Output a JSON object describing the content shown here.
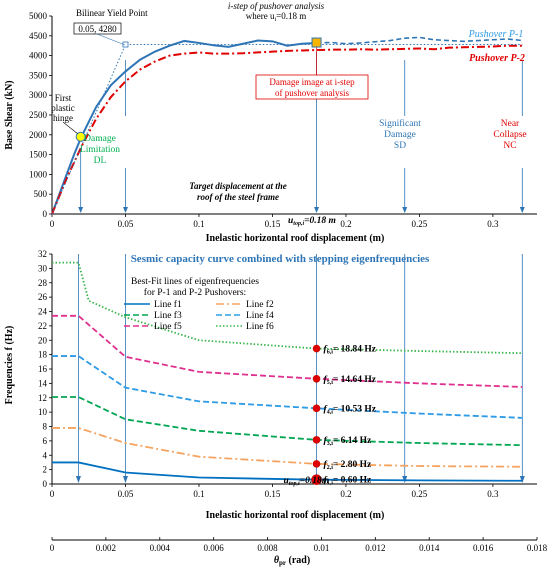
{
  "chart_data": [
    {
      "type": "line",
      "title": "",
      "xlabel": "Inelastic horizontal roof displacement (m)",
      "ylabel": "Base Shear (kN)",
      "xlim": [
        0,
        0.33
      ],
      "ylim": [
        0,
        5000
      ],
      "x_ticks": [
        "0",
        "0.05",
        "0.1",
        "0.15",
        "0.2",
        "0.25",
        "0.3"
      ],
      "y_ticks": [
        "0",
        "500",
        "1000",
        "1500",
        "2000",
        "2500",
        "3000",
        "3500",
        "4000",
        "4500",
        "5000"
      ],
      "legend": "top-right",
      "grid": false,
      "series": [
        {
          "name": "Pushover P-1",
          "color": "#2e75b6",
          "style": "solid-then-dashed",
          "x": [
            0,
            0.005,
            0.01,
            0.015,
            0.02,
            0.03,
            0.04,
            0.05,
            0.06,
            0.07,
            0.08,
            0.09,
            0.1,
            0.11,
            0.12,
            0.13,
            0.14,
            0.15,
            0.16,
            0.17,
            0.175,
            0.18,
            0.19,
            0.2,
            0.21,
            0.22,
            0.23,
            0.24,
            0.25,
            0.26,
            0.27,
            0.28,
            0.29,
            0.3,
            0.31,
            0.32
          ],
          "y": [
            0,
            500,
            1000,
            1500,
            1950,
            2700,
            3250,
            3600,
            3900,
            4100,
            4250,
            4370,
            4320,
            4260,
            4220,
            4300,
            4380,
            4360,
            4250,
            4300,
            4310,
            4320,
            4330,
            4300,
            4320,
            4350,
            4380,
            4440,
            4460,
            4400,
            4380,
            4360,
            4380,
            4400,
            4420,
            4380
          ]
        },
        {
          "name": "Pushover P-2",
          "color": "#e00000",
          "style": "dash-dot",
          "x": [
            0,
            0.01,
            0.02,
            0.03,
            0.04,
            0.05,
            0.06,
            0.07,
            0.08,
            0.09,
            0.1,
            0.11,
            0.12,
            0.13,
            0.14,
            0.15,
            0.16,
            0.17,
            0.18,
            0.19,
            0.2,
            0.21,
            0.22,
            0.23,
            0.24,
            0.25,
            0.26,
            0.27,
            0.28,
            0.29,
            0.3,
            0.31,
            0.32
          ],
          "y": [
            0,
            900,
            1700,
            2400,
            2950,
            3350,
            3650,
            3850,
            4000,
            4050,
            4080,
            4050,
            4050,
            4060,
            4080,
            4100,
            4120,
            4130,
            4140,
            4150,
            4150,
            4160,
            4150,
            4160,
            4170,
            4180,
            4160,
            4200,
            4210,
            4220,
            4230,
            4250,
            4250
          ]
        },
        {
          "name": "Bilinear Yield Point",
          "color": "#2e75b6",
          "style": "dotted",
          "x": [
            0,
            0.05,
            0.32
          ],
          "y": [
            0,
            4280,
            4280
          ]
        }
      ],
      "annotations": [
        {
          "text": "Bilinear Yield Point",
          "x": 0.05,
          "y": 4280
        },
        {
          "text": "0.05, 4280"
        },
        {
          "text": "First plastic hinge",
          "x": 0.0195,
          "y": 1950
        },
        {
          "text": "Damage Limitation DL",
          "x": 0.05
        },
        {
          "text": "Significant Damage SD",
          "x": 0.24
        },
        {
          "text": "Near Collapse NC",
          "x": 0.32
        },
        {
          "text": "Damage image at i-step of pushover analysis"
        },
        {
          "text": "i-step of pushover analysis where ui=0.18 m",
          "x": 0.18,
          "y": 4330
        },
        {
          "text": "Target displacement at the roof of the steel frame"
        },
        {
          "text": "utop,i=0.18 m",
          "x": 0.18
        }
      ]
    },
    {
      "type": "line",
      "title": "Sesmic capacity curve combined with stepping eigenfrequencies",
      "xlabel": "Inelastic horizontal roof displacement (m)",
      "ylabel": "Frequencies f (Hz)",
      "xlim": [
        0,
        0.33
      ],
      "ylim": [
        0,
        32
      ],
      "x_ticks": [
        "0",
        "0.05",
        "0.1",
        "0.15",
        "0.2",
        "0.25",
        "0.3"
      ],
      "y_ticks": [
        "0",
        "2",
        "4",
        "6",
        "8",
        "10",
        "12",
        "14",
        "16",
        "18",
        "20",
        "22",
        "24",
        "26",
        "28",
        "30",
        "32"
      ],
      "legend": "top-center",
      "legend_title": "Best-Fit lines of eigenfrequencies for P-1 and P-2 Pushovers:",
      "x2_label": "θpr (rad)",
      "x2_ticks": [
        "0",
        "0.002",
        "0.004",
        "0.006",
        "0.008",
        "0.01",
        "0.012",
        "0.014",
        "0.016",
        "0.018"
      ],
      "x2_lim": [
        0,
        0.018
      ],
      "series": [
        {
          "name": "Line f1",
          "color": "#0070c0",
          "style": "solid",
          "x": [
            0,
            0.018,
            0.05,
            0.1,
            0.18,
            0.25,
            0.32
          ],
          "y": [
            3.0,
            3.0,
            1.6,
            0.9,
            0.6,
            0.5,
            0.45
          ]
        },
        {
          "name": "Line f2",
          "color": "#f4a460",
          "style": "dash-dot",
          "x": [
            0,
            0.018,
            0.05,
            0.1,
            0.18,
            0.25,
            0.32
          ],
          "y": [
            7.8,
            7.8,
            5.7,
            3.8,
            2.8,
            2.5,
            2.4
          ]
        },
        {
          "name": "Line f3",
          "color": "#00a651",
          "style": "dash",
          "x": [
            0,
            0.018,
            0.05,
            0.1,
            0.18,
            0.25,
            0.32
          ],
          "y": [
            12.1,
            12.1,
            9.0,
            7.4,
            6.14,
            5.7,
            5.4
          ]
        },
        {
          "name": "Line f4",
          "color": "#2e9be6",
          "style": "dash",
          "x": [
            0,
            0.018,
            0.05,
            0.1,
            0.18,
            0.25,
            0.32
          ],
          "y": [
            17.8,
            17.8,
            13.4,
            11.5,
            10.53,
            9.8,
            9.2
          ]
        },
        {
          "name": "Line f5",
          "color": "#e0308f",
          "style": "dash",
          "x": [
            0,
            0.018,
            0.05,
            0.1,
            0.18,
            0.25,
            0.32
          ],
          "y": [
            23.4,
            23.4,
            17.7,
            15.6,
            14.64,
            14.0,
            13.5
          ]
        },
        {
          "name": "Line f6",
          "color": "#39b54a",
          "style": "dotted",
          "x": [
            0,
            0.018,
            0.025,
            0.05,
            0.1,
            0.18,
            0.25,
            0.32
          ],
          "y": [
            30.8,
            30.8,
            25.5,
            23.2,
            20.0,
            18.84,
            18.5,
            18.2
          ]
        }
      ],
      "annotations": [
        {
          "text": "f6,i = 18.84 Hz",
          "x": 0.18,
          "y": 18.84
        },
        {
          "text": "f5,i = 14.64 Hz",
          "x": 0.18,
          "y": 14.64
        },
        {
          "text": "f4,i = 10.53 Hz",
          "x": 0.18,
          "y": 10.53
        },
        {
          "text": "f3,i = 6.14 Hz",
          "x": 0.18,
          "y": 6.14
        },
        {
          "text": "f2,i = 2.80 Hz",
          "x": 0.18,
          "y": 2.8
        },
        {
          "text": "f1,i = 0.60 Hz",
          "x": 0.18,
          "y": 0.6
        },
        {
          "text": "utop,i=0.18m",
          "x": 0.18
        }
      ],
      "vertical_markers_x": [
        0.018,
        0.05,
        0.18,
        0.24,
        0.32
      ]
    }
  ]
}
